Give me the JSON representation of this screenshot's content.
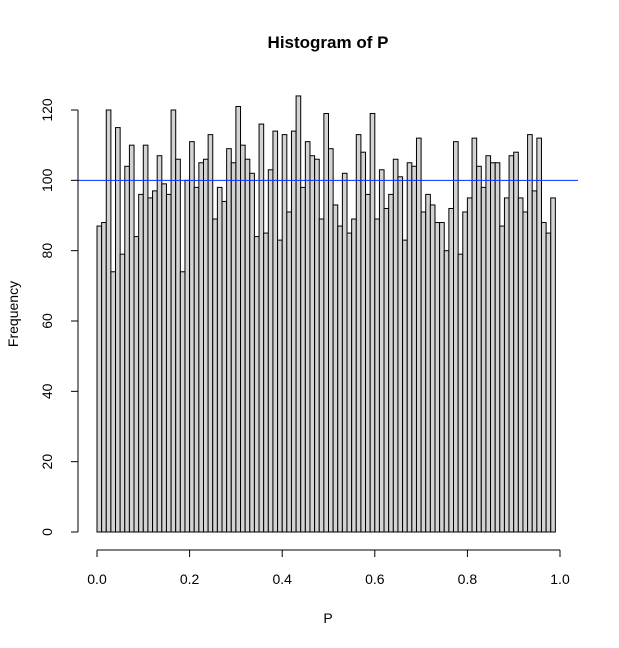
{
  "chart_data": {
    "type": "bar",
    "title": "Histogram of P",
    "xlabel": "P",
    "ylabel": "Frequency",
    "xlim": [
      0,
      1
    ],
    "ylim": [
      0,
      124
    ],
    "x_ticks": [
      "0.0",
      "0.2",
      "0.4",
      "0.6",
      "0.8",
      "1.0"
    ],
    "y_ticks": [
      "0",
      "20",
      "40",
      "60",
      "80",
      "100",
      "120"
    ],
    "bin_width": 0.01,
    "bin_start": 0,
    "values": [
      87,
      88,
      120,
      74,
      115,
      79,
      104,
      110,
      84,
      96,
      110,
      95,
      97,
      107,
      99,
      96,
      120,
      106,
      74,
      100,
      111,
      98,
      105,
      106,
      113,
      89,
      98,
      94,
      109,
      105,
      121,
      110,
      106,
      102,
      84,
      116,
      85,
      103,
      114,
      83,
      113,
      91,
      114,
      124,
      98,
      111,
      107,
      106,
      89,
      119,
      109,
      93,
      87,
      102,
      85,
      89,
      113,
      108,
      96,
      119,
      89,
      103,
      92,
      96,
      106,
      101,
      83,
      105,
      104,
      112,
      91,
      96,
      93,
      88,
      88,
      80,
      92,
      111,
      79,
      91,
      95,
      112,
      104,
      98,
      107,
      105,
      105,
      87,
      95,
      107,
      108,
      95,
      91,
      113,
      97,
      112,
      88,
      85,
      95
    ],
    "reference_line": {
      "y": 100,
      "color": "#0033ff"
    },
    "colors": {
      "bar_fill": "#d3d3d3",
      "bar_stroke": "#000000"
    },
    "grid": false
  }
}
